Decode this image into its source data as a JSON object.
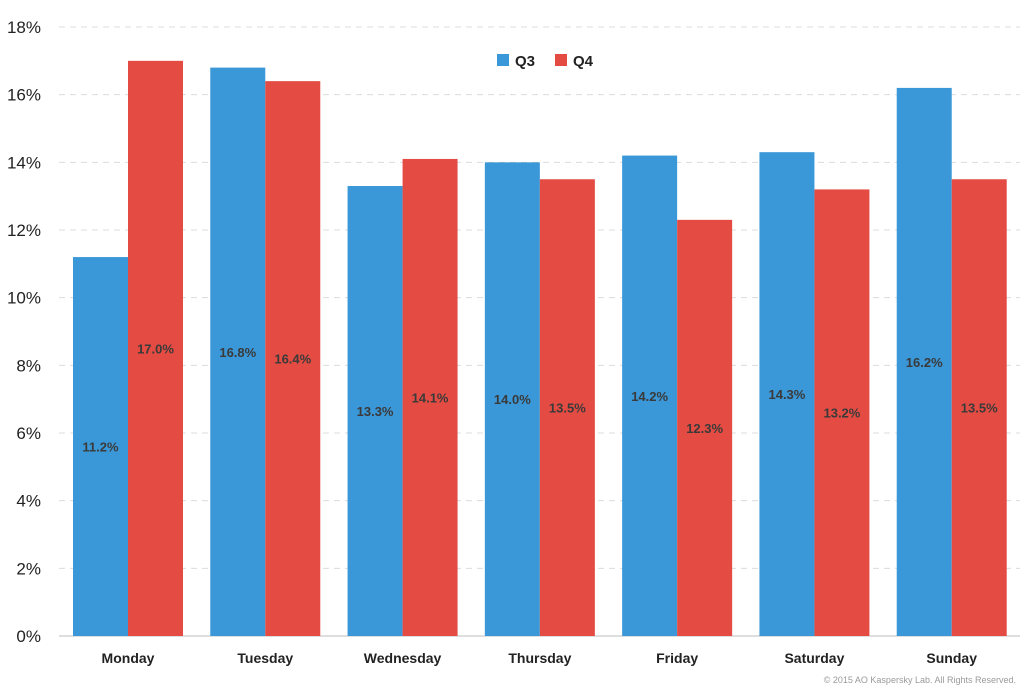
{
  "chart_data": {
    "type": "bar",
    "categories": [
      "Monday",
      "Tuesday",
      "Wednesday",
      "Thursday",
      "Friday",
      "Saturday",
      "Sunday"
    ],
    "series": [
      {
        "name": "Q3",
        "color": "#3a98d8",
        "values": [
          11.2,
          16.8,
          13.3,
          14.0,
          14.2,
          14.3,
          16.2
        ],
        "labels": [
          "11.2%",
          "16.8%",
          "13.3%",
          "14.0%",
          "14.2%",
          "14.3%",
          "16.2%"
        ]
      },
      {
        "name": "Q4",
        "color": "#e44c43",
        "values": [
          17.0,
          16.4,
          14.1,
          13.5,
          12.3,
          13.2,
          13.5
        ],
        "labels": [
          "17.0%",
          "16.4%",
          "14.1%",
          "13.5%",
          "12.3%",
          "13.2%",
          "13.5%"
        ]
      }
    ],
    "y_ticks": [
      "0%",
      "2%",
      "4%",
      "6%",
      "8%",
      "10%",
      "12%",
      "14%",
      "16%",
      "18%"
    ],
    "ylim": [
      0,
      18
    ],
    "y_unit": "%",
    "grid": true,
    "legend_position": "top-center"
  },
  "footer": {
    "copyright": "© 2015 AO Kaspersky Lab. All Rights Reserved."
  }
}
